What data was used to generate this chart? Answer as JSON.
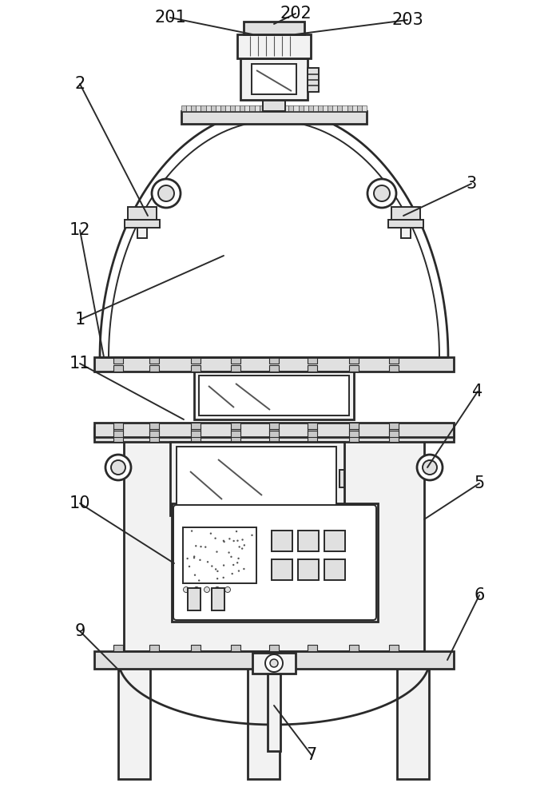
{
  "bg_color": "#ffffff",
  "lc": "#2a2a2a",
  "lc2": "#555555",
  "lw": 1.4,
  "lw2": 2.0,
  "lw3": 2.5,
  "fc_white": "#ffffff",
  "fc_light": "#f2f2f2",
  "fc_gray": "#e0e0e0",
  "fc_dark": "#c8c8c8",
  "label_fs": 15,
  "label_color": "#111111"
}
